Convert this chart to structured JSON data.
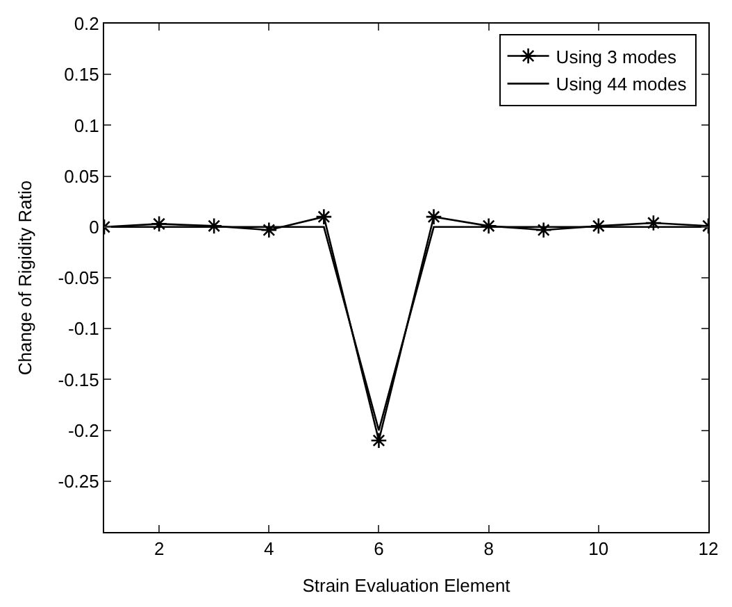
{
  "chart_data": {
    "type": "line",
    "xlabel": "Strain Evaluation Element",
    "ylabel": "Change of Rigidity Ratio",
    "x": [
      1,
      2,
      3,
      4,
      5,
      6,
      7,
      8,
      9,
      10,
      11,
      12
    ],
    "series": [
      {
        "name": "Using 3 modes",
        "color": "#000000",
        "marker": "cross",
        "values": [
          0,
          0.003,
          0.001,
          -0.003,
          0.01,
          -0.21,
          0.01,
          0.001,
          -0.003,
          0.001,
          0.004,
          0.001
        ]
      },
      {
        "name": "Using 44 modes",
        "color": "#000000",
        "marker": "none",
        "values": [
          0,
          0,
          0,
          0,
          0,
          -0.2,
          0,
          0,
          0,
          0,
          0,
          0
        ]
      }
    ],
    "xlim": [
      1,
      12
    ],
    "xticks": [
      2,
      4,
      6,
      8,
      10,
      12
    ],
    "ylim": [
      -0.3,
      0.2
    ],
    "yticks": [
      0.2,
      0.15,
      0.1,
      0.05,
      0,
      -0.05,
      -0.1,
      -0.15,
      -0.2,
      -0.25
    ],
    "grid": false,
    "legend": "top right",
    "line_style": "solid"
  }
}
